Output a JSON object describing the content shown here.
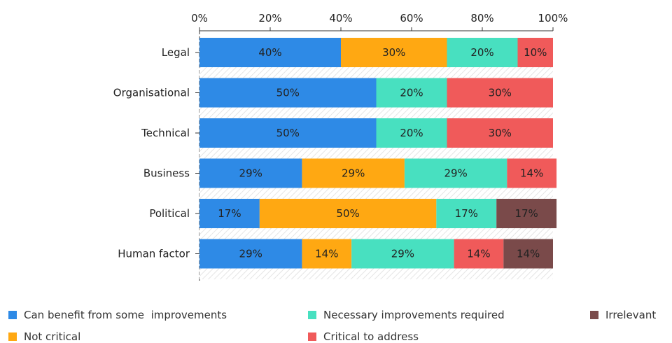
{
  "chart_data": {
    "type": "bar",
    "orientation": "horizontal",
    "stacked": true,
    "categories": [
      "Legal",
      "Organisational",
      "Technical",
      "Business",
      "Political",
      "Human factor"
    ],
    "x_ticks": [
      "0%",
      "20%",
      "40%",
      "60%",
      "80%",
      "100%"
    ],
    "xlim": [
      0,
      100
    ],
    "series": [
      {
        "name": "Can benefit from some  improvements",
        "color": "#2e8ae6",
        "values": [
          40,
          50,
          50,
          29,
          17,
          29
        ]
      },
      {
        "name": "Not critical",
        "color": "#ffa812",
        "values": [
          30,
          0,
          0,
          29,
          50,
          14
        ]
      },
      {
        "name": "Necessary improvements required",
        "color": "#48e0c0",
        "values": [
          20,
          20,
          20,
          29,
          17,
          29
        ]
      },
      {
        "name": "Critical to address",
        "color": "#f05a5a",
        "values": [
          10,
          30,
          30,
          14,
          0,
          14
        ]
      },
      {
        "name": "Irrelevant",
        "color": "#7a4a4a",
        "values": [
          0,
          0,
          0,
          0,
          17,
          14
        ]
      }
    ],
    "data_labels": [
      [
        "40%",
        "50%",
        "50%",
        "29%",
        "17%",
        "29%"
      ],
      [
        "30%",
        "",
        "",
        "29%",
        "50%",
        "14%"
      ],
      [
        "20%",
        "20%",
        "20%",
        "29%",
        "17%",
        "29%"
      ],
      [
        "10%",
        "30%",
        "30%",
        "14%",
        "",
        "14%"
      ],
      [
        "",
        "",
        "",
        "",
        "17%",
        "14%"
      ]
    ],
    "legend_position": "bottom",
    "axis_position": "top",
    "grid": false
  }
}
